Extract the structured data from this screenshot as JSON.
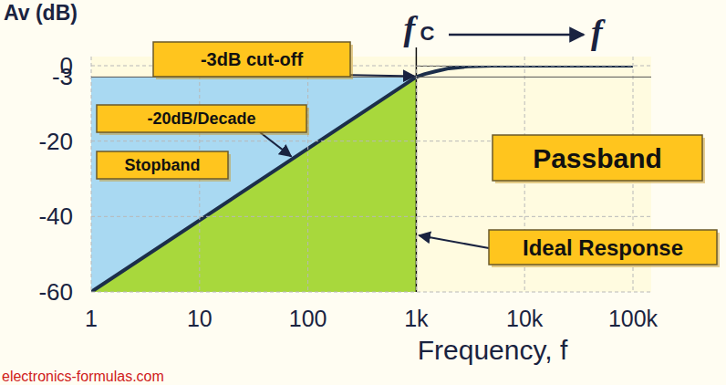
{
  "chart_data": {
    "type": "line",
    "log": "x",
    "grid": true,
    "y_label": "Av (dB)",
    "x_label": "Frequency, f",
    "xlim": [
      1,
      100000
    ],
    "ylim": [
      -60,
      0
    ],
    "xticks": [
      1,
      10,
      100,
      {
        "value": 1000,
        "label": "1k"
      },
      {
        "value": 10000,
        "label": "10k"
      },
      {
        "value": 100000,
        "label": "100k"
      }
    ],
    "yticks": [
      0,
      -3,
      -20,
      -40,
      -60
    ],
    "x": [
      1,
      1000,
      1200,
      1500,
      2000,
      3000,
      5000,
      100000
    ],
    "values": [
      -60,
      -3,
      -2.2,
      -1.5,
      -0.7,
      -0.2,
      0,
      0
    ],
    "color": "#1c2e4a",
    "ideal_response": {
      "label": "Ideal Response",
      "x": [
        1000,
        1000,
        100000
      ],
      "values": [
        -60,
        0,
        0
      ],
      "label_at": -45
    },
    "cutoff": {
      "symbol": "f",
      "subscript": "C",
      "label": "-3dB cut-off",
      "x": 1000,
      "y": -3
    },
    "slope": {
      "label": "-20dB/Decade",
      "x": 70,
      "y": -25
    },
    "stopband": {
      "label": "Stopband",
      "x": [
        1,
        1000
      ],
      "y": [
        -60,
        -3
      ]
    },
    "passband": {
      "label": "Passband"
    },
    "frequency_arrow": "f",
    "source": "electronics-formulas.com"
  }
}
